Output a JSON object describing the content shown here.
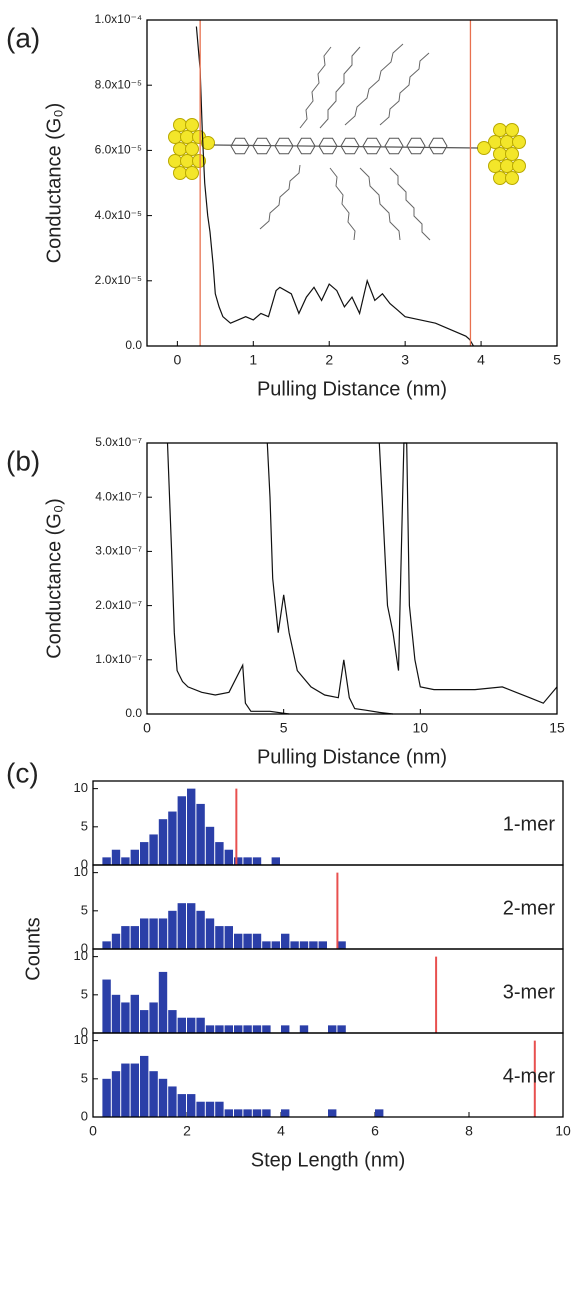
{
  "chart_data": [
    {
      "type": "line",
      "panel": "(a)",
      "xlabel": "Pulling Distance (nm)",
      "ylabel": "Conductance (G₀)",
      "xlim": [
        -0.4,
        5
      ],
      "ylim": [
        0,
        0.0001
      ],
      "xticks": [
        0,
        1,
        2,
        3,
        4,
        5
      ],
      "yticks": [
        {
          "value": 0,
          "label": "0.0"
        },
        {
          "value": 2e-05,
          "label": "2.0x10⁻⁵"
        },
        {
          "value": 4e-05,
          "label": "4.0x10⁻⁵"
        },
        {
          "value": 6e-05,
          "label": "6.0x10⁻⁵"
        },
        {
          "value": 8e-05,
          "label": "8.0x10⁻⁵"
        },
        {
          "value": 0.0001,
          "label": "1.0x10⁻⁴"
        }
      ],
      "series": [
        {
          "color": "#111111",
          "x": [
            0.25,
            0.3,
            0.33,
            0.36,
            0.4,
            0.43,
            0.47,
            0.5,
            0.55,
            0.6,
            0.7,
            0.8,
            0.9,
            1.0,
            1.1,
            1.2,
            1.3,
            1.35,
            1.5,
            1.6,
            1.7,
            1.8,
            1.9,
            2.0,
            2.1,
            2.2,
            2.3,
            2.4,
            2.5,
            2.6,
            2.7,
            2.8,
            2.9,
            3.0,
            3.2,
            3.4,
            3.6,
            3.8,
            3.85,
            3.9
          ],
          "values": [
            9.8e-05,
            8.5e-05,
            6.5e-05,
            5e-05,
            4e-05,
            3.5e-05,
            2.5e-05,
            1.6e-05,
            1.2e-05,
            9e-06,
            7e-06,
            8e-06,
            9e-06,
            8e-06,
            1e-05,
            9e-06,
            1.7e-05,
            1.8e-05,
            1.6e-05,
            1e-05,
            1.5e-05,
            1.8e-05,
            1.4e-05,
            1.9e-05,
            1.7e-05,
            1.2e-05,
            1.5e-05,
            1e-05,
            2e-05,
            1.4e-05,
            1.6e-05,
            1.3e-05,
            1.1e-05,
            9e-06,
            8e-06,
            7e-06,
            5e-06,
            3e-06,
            2e-06,
            0
          ]
        }
      ],
      "vlines": {
        "color": "#e8704f",
        "x": [
          0.3,
          3.86
        ]
      }
    },
    {
      "type": "line",
      "panel": "(b)",
      "xlabel": "Pulling Distance (nm)",
      "ylabel": "Conductance (G₀)",
      "xlim": [
        0,
        15
      ],
      "ylim": [
        0,
        5e-07
      ],
      "xticks": [
        0,
        5,
        10,
        15
      ],
      "yticks": [
        {
          "value": 0,
          "label": "0.0"
        },
        {
          "value": 1e-07,
          "label": "1.0x10⁻⁷"
        },
        {
          "value": 2e-07,
          "label": "2.0x10⁻⁷"
        },
        {
          "value": 3e-07,
          "label": "3.0x10⁻⁷"
        },
        {
          "value": 4e-07,
          "label": "4.0x10⁻⁷"
        },
        {
          "value": 5e-07,
          "label": "5.0x10⁻⁷"
        }
      ],
      "series": [
        {
          "color": "#111111",
          "x": [
            0.75,
            0.9,
            1.0,
            1.1,
            1.3,
            1.5,
            2,
            2.5,
            3,
            3.5,
            3.6,
            3.8,
            4.5,
            5.2
          ],
          "values": [
            5e-07,
            3e-07,
            1.5e-07,
            8e-08,
            6e-08,
            5e-08,
            4e-08,
            3.5e-08,
            4e-08,
            9e-08,
            2e-08,
            5e-09,
            5e-09,
            0
          ]
        },
        {
          "color": "#111111",
          "x": [
            4.4,
            4.5,
            4.6,
            4.8,
            5,
            5.2,
            5.5,
            6,
            6.5,
            7,
            7.2,
            7.4,
            7.6,
            8,
            8.5,
            9
          ],
          "values": [
            5e-07,
            4e-07,
            2.5e-07,
            1.5e-07,
            2.2e-07,
            1.5e-07,
            8e-08,
            5e-08,
            3.5e-08,
            3e-08,
            1e-07,
            3e-08,
            1e-08,
            7e-09,
            3e-09,
            0
          ]
        },
        {
          "color": "#111111",
          "x": [
            8.5,
            8.6,
            8.8,
            9,
            9.2,
            9.4,
            9.5,
            9.6,
            9.8,
            10,
            10.5,
            11,
            12,
            13,
            13.5,
            14,
            14.5,
            15
          ],
          "values": [
            5e-07,
            4e-07,
            2e-07,
            1.5e-07,
            8e-08,
            5e-07,
            5e-07,
            2e-07,
            1e-07,
            5e-08,
            4.5e-08,
            4.5e-08,
            4.5e-08,
            5e-08,
            4e-08,
            3e-08,
            2e-08,
            5e-08
          ]
        }
      ]
    },
    {
      "type": "histogram",
      "panel": "(c)",
      "ylabel": "Counts",
      "label": "1-mer",
      "color": "#2b3fa8",
      "xlim": [
        0,
        10
      ],
      "ylim": [
        0,
        11
      ],
      "yticks": [
        0,
        5,
        10
      ],
      "bins": [
        0.2,
        0.4,
        0.6,
        0.8,
        1.0,
        1.2,
        1.4,
        1.6,
        1.8,
        2.0,
        2.2,
        2.4,
        2.6,
        2.8,
        3.0,
        3.2,
        3.4,
        3.6,
        3.8,
        4.0,
        4.2,
        4.4,
        4.6,
        4.8,
        5.0,
        5.2,
        5.4,
        5.6,
        5.8,
        6.0,
        6.2,
        6.4
      ],
      "values": [
        1,
        2,
        1,
        2,
        3,
        4,
        6,
        7,
        9,
        10,
        8,
        5,
        3,
        2,
        1,
        1,
        1,
        0,
        1,
        0,
        0,
        0,
        0,
        0,
        0,
        0,
        0,
        0,
        0,
        0,
        0
      ],
      "marker": {
        "color": "#e8504f",
        "x": 3.05,
        "value": 10
      }
    },
    {
      "type": "histogram",
      "label": "2-mer",
      "color": "#2b3fa8",
      "xlim": [
        0,
        10
      ],
      "ylim": [
        0,
        11
      ],
      "yticks": [
        0,
        5,
        10
      ],
      "bins": [
        0.2,
        0.4,
        0.6,
        0.8,
        1.0,
        1.2,
        1.4,
        1.6,
        1.8,
        2.0,
        2.2,
        2.4,
        2.6,
        2.8,
        3.0,
        3.2,
        3.4,
        3.6,
        3.8,
        4.0,
        4.2,
        4.4,
        4.6,
        4.8,
        5.0,
        5.2,
        5.4,
        5.6,
        5.8,
        6.0,
        6.2,
        6.4
      ],
      "values": [
        1,
        2,
        3,
        3,
        4,
        4,
        4,
        5,
        6,
        6,
        5,
        4,
        3,
        3,
        2,
        2,
        2,
        1,
        1,
        2,
        1,
        1,
        1,
        1,
        0,
        1,
        0,
        0,
        0,
        0,
        0
      ],
      "marker": {
        "color": "#e8504f",
        "x": 5.2,
        "value": 10
      }
    },
    {
      "type": "histogram",
      "label": "3-mer",
      "color": "#2b3fa8",
      "xlim": [
        0,
        10
      ],
      "ylim": [
        0,
        11
      ],
      "yticks": [
        0,
        5,
        10
      ],
      "bins": [
        0.2,
        0.4,
        0.6,
        0.8,
        1.0,
        1.2,
        1.4,
        1.6,
        1.8,
        2.0,
        2.2,
        2.4,
        2.6,
        2.8,
        3.0,
        3.2,
        3.4,
        3.6,
        3.8,
        4.0,
        4.2,
        4.4,
        4.6,
        4.8,
        5.0,
        5.2,
        5.4,
        5.6,
        5.8,
        6.0,
        6.2,
        6.4
      ],
      "values": [
        7,
        5,
        4,
        5,
        3,
        4,
        8,
        3,
        2,
        2,
        2,
        1,
        1,
        1,
        1,
        1,
        1,
        1,
        0,
        1,
        0,
        1,
        0,
        0,
        1,
        1,
        0,
        0,
        0,
        0,
        0
      ],
      "marker": {
        "color": "#e8504f",
        "x": 7.3,
        "value": 10
      }
    },
    {
      "type": "histogram",
      "label": "4-mer",
      "xlabel": "Step Length (nm)",
      "color": "#2b3fa8",
      "xlim": [
        0,
        10
      ],
      "ylim": [
        0,
        11
      ],
      "yticks": [
        0,
        5,
        10
      ],
      "xticks": [
        0,
        2,
        4,
        6,
        8,
        10
      ],
      "bins": [
        0.2,
        0.4,
        0.6,
        0.8,
        1.0,
        1.2,
        1.4,
        1.6,
        1.8,
        2.0,
        2.2,
        2.4,
        2.6,
        2.8,
        3.0,
        3.2,
        3.4,
        3.6,
        3.8,
        4.0,
        4.2,
        4.4,
        4.6,
        4.8,
        5.0,
        5.2,
        5.4,
        5.6,
        5.8,
        6.0,
        6.2,
        6.4
      ],
      "values": [
        5,
        6,
        7,
        7,
        8,
        6,
        5,
        4,
        3,
        3,
        2,
        2,
        2,
        1,
        1,
        1,
        1,
        1,
        0,
        1,
        0,
        0,
        0,
        0,
        1,
        0,
        0,
        0,
        0,
        1,
        0
      ],
      "marker": {
        "color": "#e8504f",
        "x": 9.4,
        "value": 10
      }
    }
  ]
}
